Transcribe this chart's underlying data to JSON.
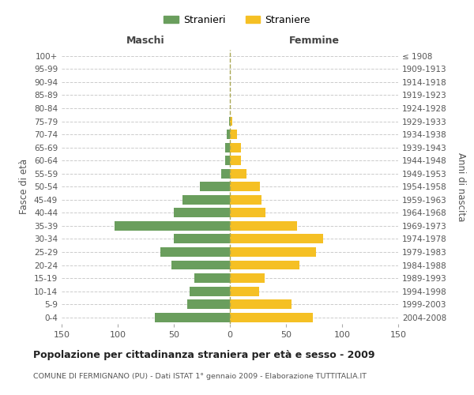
{
  "age_groups": [
    "100+",
    "95-99",
    "90-94",
    "85-89",
    "80-84",
    "75-79",
    "70-74",
    "65-69",
    "60-64",
    "55-59",
    "50-54",
    "45-49",
    "40-44",
    "35-39",
    "30-34",
    "25-29",
    "20-24",
    "15-19",
    "10-14",
    "5-9",
    "0-4"
  ],
  "birth_years": [
    "≤ 1908",
    "1909-1913",
    "1914-1918",
    "1919-1923",
    "1924-1928",
    "1929-1933",
    "1934-1938",
    "1939-1943",
    "1944-1948",
    "1949-1953",
    "1954-1958",
    "1959-1963",
    "1964-1968",
    "1969-1973",
    "1974-1978",
    "1979-1983",
    "1984-1988",
    "1989-1993",
    "1994-1998",
    "1999-2003",
    "2004-2008"
  ],
  "males": [
    0,
    0,
    0,
    0,
    0,
    1,
    3,
    4,
    4,
    8,
    27,
    42,
    50,
    103,
    50,
    62,
    52,
    32,
    36,
    38,
    67
  ],
  "females": [
    0,
    0,
    0,
    0,
    0,
    2,
    6,
    10,
    10,
    15,
    27,
    28,
    32,
    60,
    83,
    77,
    62,
    31,
    26,
    55,
    74
  ],
  "male_color": "#6a9e5d",
  "female_color": "#f5c024",
  "background_color": "#ffffff",
  "grid_color": "#cccccc",
  "title": "Popolazione per cittadinanza straniera per età e sesso - 2009",
  "subtitle": "COMUNE DI FERMIGNANO (PU) - Dati ISTAT 1° gennaio 2009 - Elaborazione TUTTITALIA.IT",
  "ylabel_left": "Fasce di età",
  "ylabel_right": "Anni di nascita",
  "legend_male": "Stranieri",
  "legend_female": "Straniere",
  "xlim": 150,
  "header_maschi": "Maschi",
  "header_femmine": "Femmine"
}
